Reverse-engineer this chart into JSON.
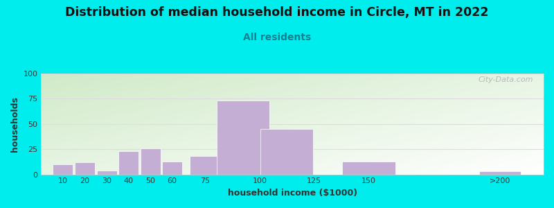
{
  "title": "Distribution of median household income in Circle, MT in 2022",
  "subtitle": "All residents",
  "xlabel": "household income ($1000)",
  "ylabel": "households",
  "bar_centers": [
    10,
    20,
    30,
    40,
    50,
    60,
    75,
    92.5,
    112.5,
    150,
    210
  ],
  "bar_widths": [
    10,
    10,
    10,
    10,
    10,
    10,
    15,
    25,
    25,
    25,
    20
  ],
  "bar_heights": [
    10,
    12,
    4,
    23,
    26,
    13,
    18,
    73,
    45,
    13,
    3
  ],
  "bar_color": "#c4aed4",
  "bg_color": "#00eded",
  "plot_bg_top_left": "#d0eac8",
  "plot_bg_bottom_right": "#ffffff",
  "ylim": [
    0,
    100
  ],
  "yticks": [
    0,
    25,
    50,
    75,
    100
  ],
  "xtick_labels": [
    "10",
    "20",
    "30",
    "40",
    "50",
    "60",
    "75",
    "100",
    "125",
    "150",
    ">200"
  ],
  "xtick_positions": [
    10,
    20,
    30,
    40,
    50,
    60,
    75,
    100,
    125,
    150,
    210
  ],
  "xlim": [
    0,
    230
  ],
  "title_fontsize": 12.5,
  "subtitle_fontsize": 10,
  "subtitle_color": "#1a8090",
  "axis_label_fontsize": 9,
  "tick_fontsize": 8,
  "watermark": "City-Data.com",
  "grid_color": "#dddddd"
}
